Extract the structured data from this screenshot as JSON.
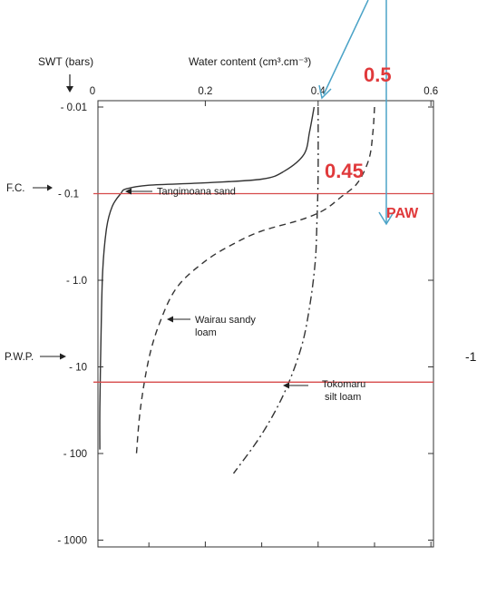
{
  "chart_data": {
    "type": "line",
    "title": "",
    "xlabel": "Water content (cm³.cm⁻³)",
    "ylabel": "SWT (bars)",
    "xlim": [
      0,
      0.6
    ],
    "y_scale": "log",
    "ylim": [
      0.01,
      1000
    ],
    "x_ticks": [
      {
        "value": 0,
        "label": "0"
      },
      {
        "value": 0.2,
        "label": "0.2"
      },
      {
        "value": 0.4,
        "label": "0.4"
      },
      {
        "value": 0.6,
        "label": "0.6"
      }
    ],
    "y_ticks": [
      {
        "value": 0.01,
        "label": "- 0.01"
      },
      {
        "value": 0.1,
        "label": "- 0.1"
      },
      {
        "value": 1,
        "label": "- 1.0"
      },
      {
        "value": 10,
        "label": "- 10"
      },
      {
        "value": 100,
        "label": "- 100"
      },
      {
        "value": 1000,
        "label": "- 1000"
      }
    ],
    "series": [
      {
        "name": "Tangimoana sand",
        "style": "solid",
        "points": [
          [
            0.393,
            0.01
          ],
          [
            0.385,
            0.019
          ],
          [
            0.375,
            0.035
          ],
          [
            0.34,
            0.055
          ],
          [
            0.3,
            0.068
          ],
          [
            0.2,
            0.075
          ],
          [
            0.1,
            0.08
          ],
          [
            0.06,
            0.088
          ],
          [
            0.05,
            0.1
          ],
          [
            0.035,
            0.14
          ],
          [
            0.025,
            0.25
          ],
          [
            0.018,
            0.8
          ],
          [
            0.015,
            5
          ],
          [
            0.013,
            30
          ],
          [
            0.013,
            90
          ]
        ]
      },
      {
        "name": "Wairau sandy loam",
        "style": "dashed",
        "points": [
          [
            0.5,
            0.01
          ],
          [
            0.497,
            0.02
          ],
          [
            0.49,
            0.04
          ],
          [
            0.47,
            0.075
          ],
          [
            0.44,
            0.11
          ],
          [
            0.41,
            0.155
          ],
          [
            0.37,
            0.2
          ],
          [
            0.3,
            0.27
          ],
          [
            0.25,
            0.38
          ],
          [
            0.2,
            0.6
          ],
          [
            0.15,
            1.2
          ],
          [
            0.12,
            3
          ],
          [
            0.1,
            8
          ],
          [
            0.085,
            30
          ],
          [
            0.078,
            100
          ]
        ]
      },
      {
        "name": "Tokomaru silt loam",
        "style": "dashdot",
        "points": [
          [
            0.4,
            0.01
          ],
          [
            0.4,
            0.06
          ],
          [
            0.398,
            0.2
          ],
          [
            0.395,
            0.6
          ],
          [
            0.385,
            2
          ],
          [
            0.37,
            6
          ],
          [
            0.34,
            20
          ],
          [
            0.3,
            60
          ],
          [
            0.25,
            170
          ]
        ]
      }
    ],
    "series_labels": [
      {
        "lines": [
          "Tangimoana sand"
        ]
      },
      {
        "lines": [
          "Wairau sandy",
          "loam"
        ]
      },
      {
        "lines": [
          "Tokomaru",
          "silt loam"
        ]
      }
    ],
    "hlines": [
      {
        "label": "F.C.",
        "y": 0.1
      },
      {
        "label": "P.W.P.",
        "y": 15
      }
    ],
    "annotations": {
      "fc_value": "0.45",
      "top_value": "0.5",
      "paw": "PAW",
      "right_edge": "-1"
    },
    "colors": {
      "guide_line": "#d64a4a",
      "annotation_text": "#e0393b",
      "arrow": "#4ba3c7",
      "axis": "#333333",
      "curve": "#333333"
    }
  }
}
